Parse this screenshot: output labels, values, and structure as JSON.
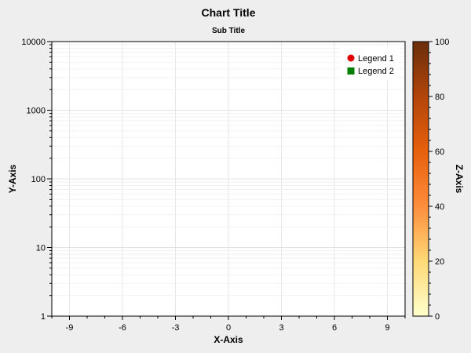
{
  "chart_data": {
    "type": "scatter",
    "title": "Chart Title",
    "subtitle": "Sub Title",
    "xlabel": "X-Axis",
    "ylabel": "Y-Axis",
    "zlabel": "Z-Axis",
    "xlim": [
      -10,
      10
    ],
    "ylim": [
      1,
      10000
    ],
    "yscale": "log",
    "zlim": [
      0,
      100
    ],
    "x_ticks": [
      -9,
      -6,
      -3,
      0,
      3,
      6,
      9
    ],
    "y_ticks": [
      1,
      10,
      100,
      1000,
      10000
    ],
    "z_ticks": [
      0,
      20,
      40,
      60,
      80,
      100
    ],
    "grid": true,
    "legend_position": "top-right",
    "colormap": [
      "#ffffcc",
      "#fed976",
      "#fd8d3c",
      "#e8600c",
      "#b2450a",
      "#6b2d0c"
    ],
    "series": [
      {
        "name": "Legend 1",
        "marker": "circle",
        "color": "#e00000",
        "points": []
      },
      {
        "name": "Legend 2",
        "marker": "square",
        "color": "#008000",
        "points": []
      }
    ]
  }
}
